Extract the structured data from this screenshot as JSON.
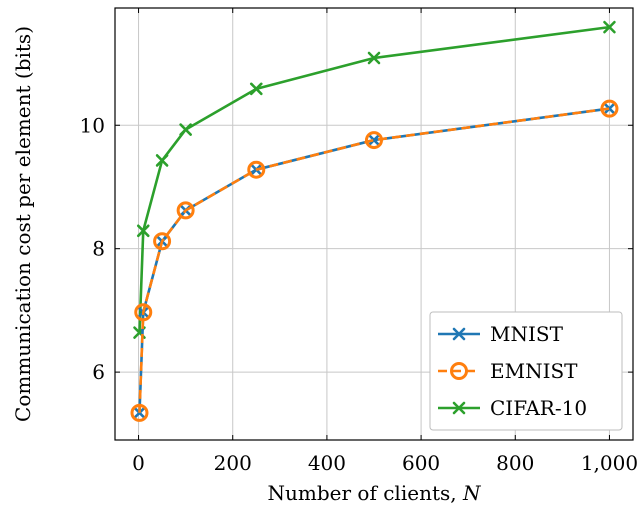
{
  "chart_data": {
    "type": "line",
    "title": "",
    "xlabel": "Number of clients, N",
    "ylabel": "Communication cost per element (bits)",
    "xlim": [
      -50,
      1050
    ],
    "ylim": [
      4.9,
      11.9
    ],
    "xticks": [
      0,
      200,
      400,
      600,
      800,
      1000
    ],
    "xtick_labels": [
      "0",
      "200",
      "400",
      "600",
      "800",
      "1,000"
    ],
    "yticks": [
      6,
      8,
      10
    ],
    "ytick_labels": [
      "6",
      "8",
      "10"
    ],
    "grid": true,
    "legend_position": "bottom-right",
    "x": [
      2,
      10,
      50,
      100,
      250,
      500,
      1000
    ],
    "series": [
      {
        "name": "MNIST",
        "values": [
          5.34,
          6.97,
          8.12,
          8.62,
          9.28,
          9.76,
          10.27
        ],
        "color": "#1f77b4",
        "line_style": "solid",
        "marker": "x"
      },
      {
        "name": "EMNIST",
        "values": [
          5.34,
          6.97,
          8.12,
          8.62,
          9.28,
          9.76,
          10.27
        ],
        "color": "#ff7f0e",
        "line_style": "dashed",
        "marker": "circle"
      },
      {
        "name": "CIFAR-10",
        "values": [
          6.64,
          8.29,
          9.43,
          9.93,
          10.59,
          11.09,
          11.59
        ],
        "color": "#2ca02c",
        "line_style": "solid",
        "marker": "x"
      }
    ]
  }
}
